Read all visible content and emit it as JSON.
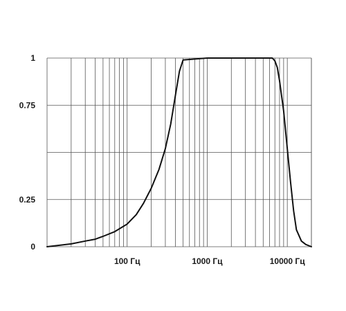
{
  "chart_data": {
    "type": "line",
    "title": "",
    "xlabel": "",
    "ylabel": "",
    "x_scale": "log",
    "xlim": [
      10,
      20000
    ],
    "ylim": [
      0,
      1
    ],
    "grid": true,
    "x_tick_labels": [
      {
        "value": 100,
        "label": "100 Гц"
      },
      {
        "value": 1000,
        "label": "1000 Гц"
      },
      {
        "value": 10000,
        "label": "10000 Гц"
      }
    ],
    "y_tick_labels": [
      {
        "value": 0,
        "label": "0"
      },
      {
        "value": 0.25,
        "label": "0.25"
      },
      {
        "value": 0.75,
        "label": "0.75"
      },
      {
        "value": 1,
        "label": "1"
      }
    ],
    "series": [
      {
        "color": "#111111",
        "x": [
          10,
          20,
          30,
          40,
          50,
          70,
          100,
          130,
          160,
          200,
          250,
          300,
          350,
          400,
          450,
          500,
          1000,
          3000,
          5000,
          6500,
          7000,
          7500,
          8000,
          9000,
          10000,
          11000,
          12000,
          13000,
          15000,
          17000,
          20000
        ],
        "y": [
          0.0,
          0.015,
          0.03,
          0.04,
          0.055,
          0.08,
          0.12,
          0.17,
          0.23,
          0.31,
          0.41,
          0.52,
          0.65,
          0.8,
          0.93,
          0.99,
          1.0,
          1.0,
          1.0,
          1.0,
          0.985,
          0.95,
          0.88,
          0.72,
          0.52,
          0.34,
          0.19,
          0.09,
          0.03,
          0.012,
          0.0
        ]
      }
    ]
  }
}
